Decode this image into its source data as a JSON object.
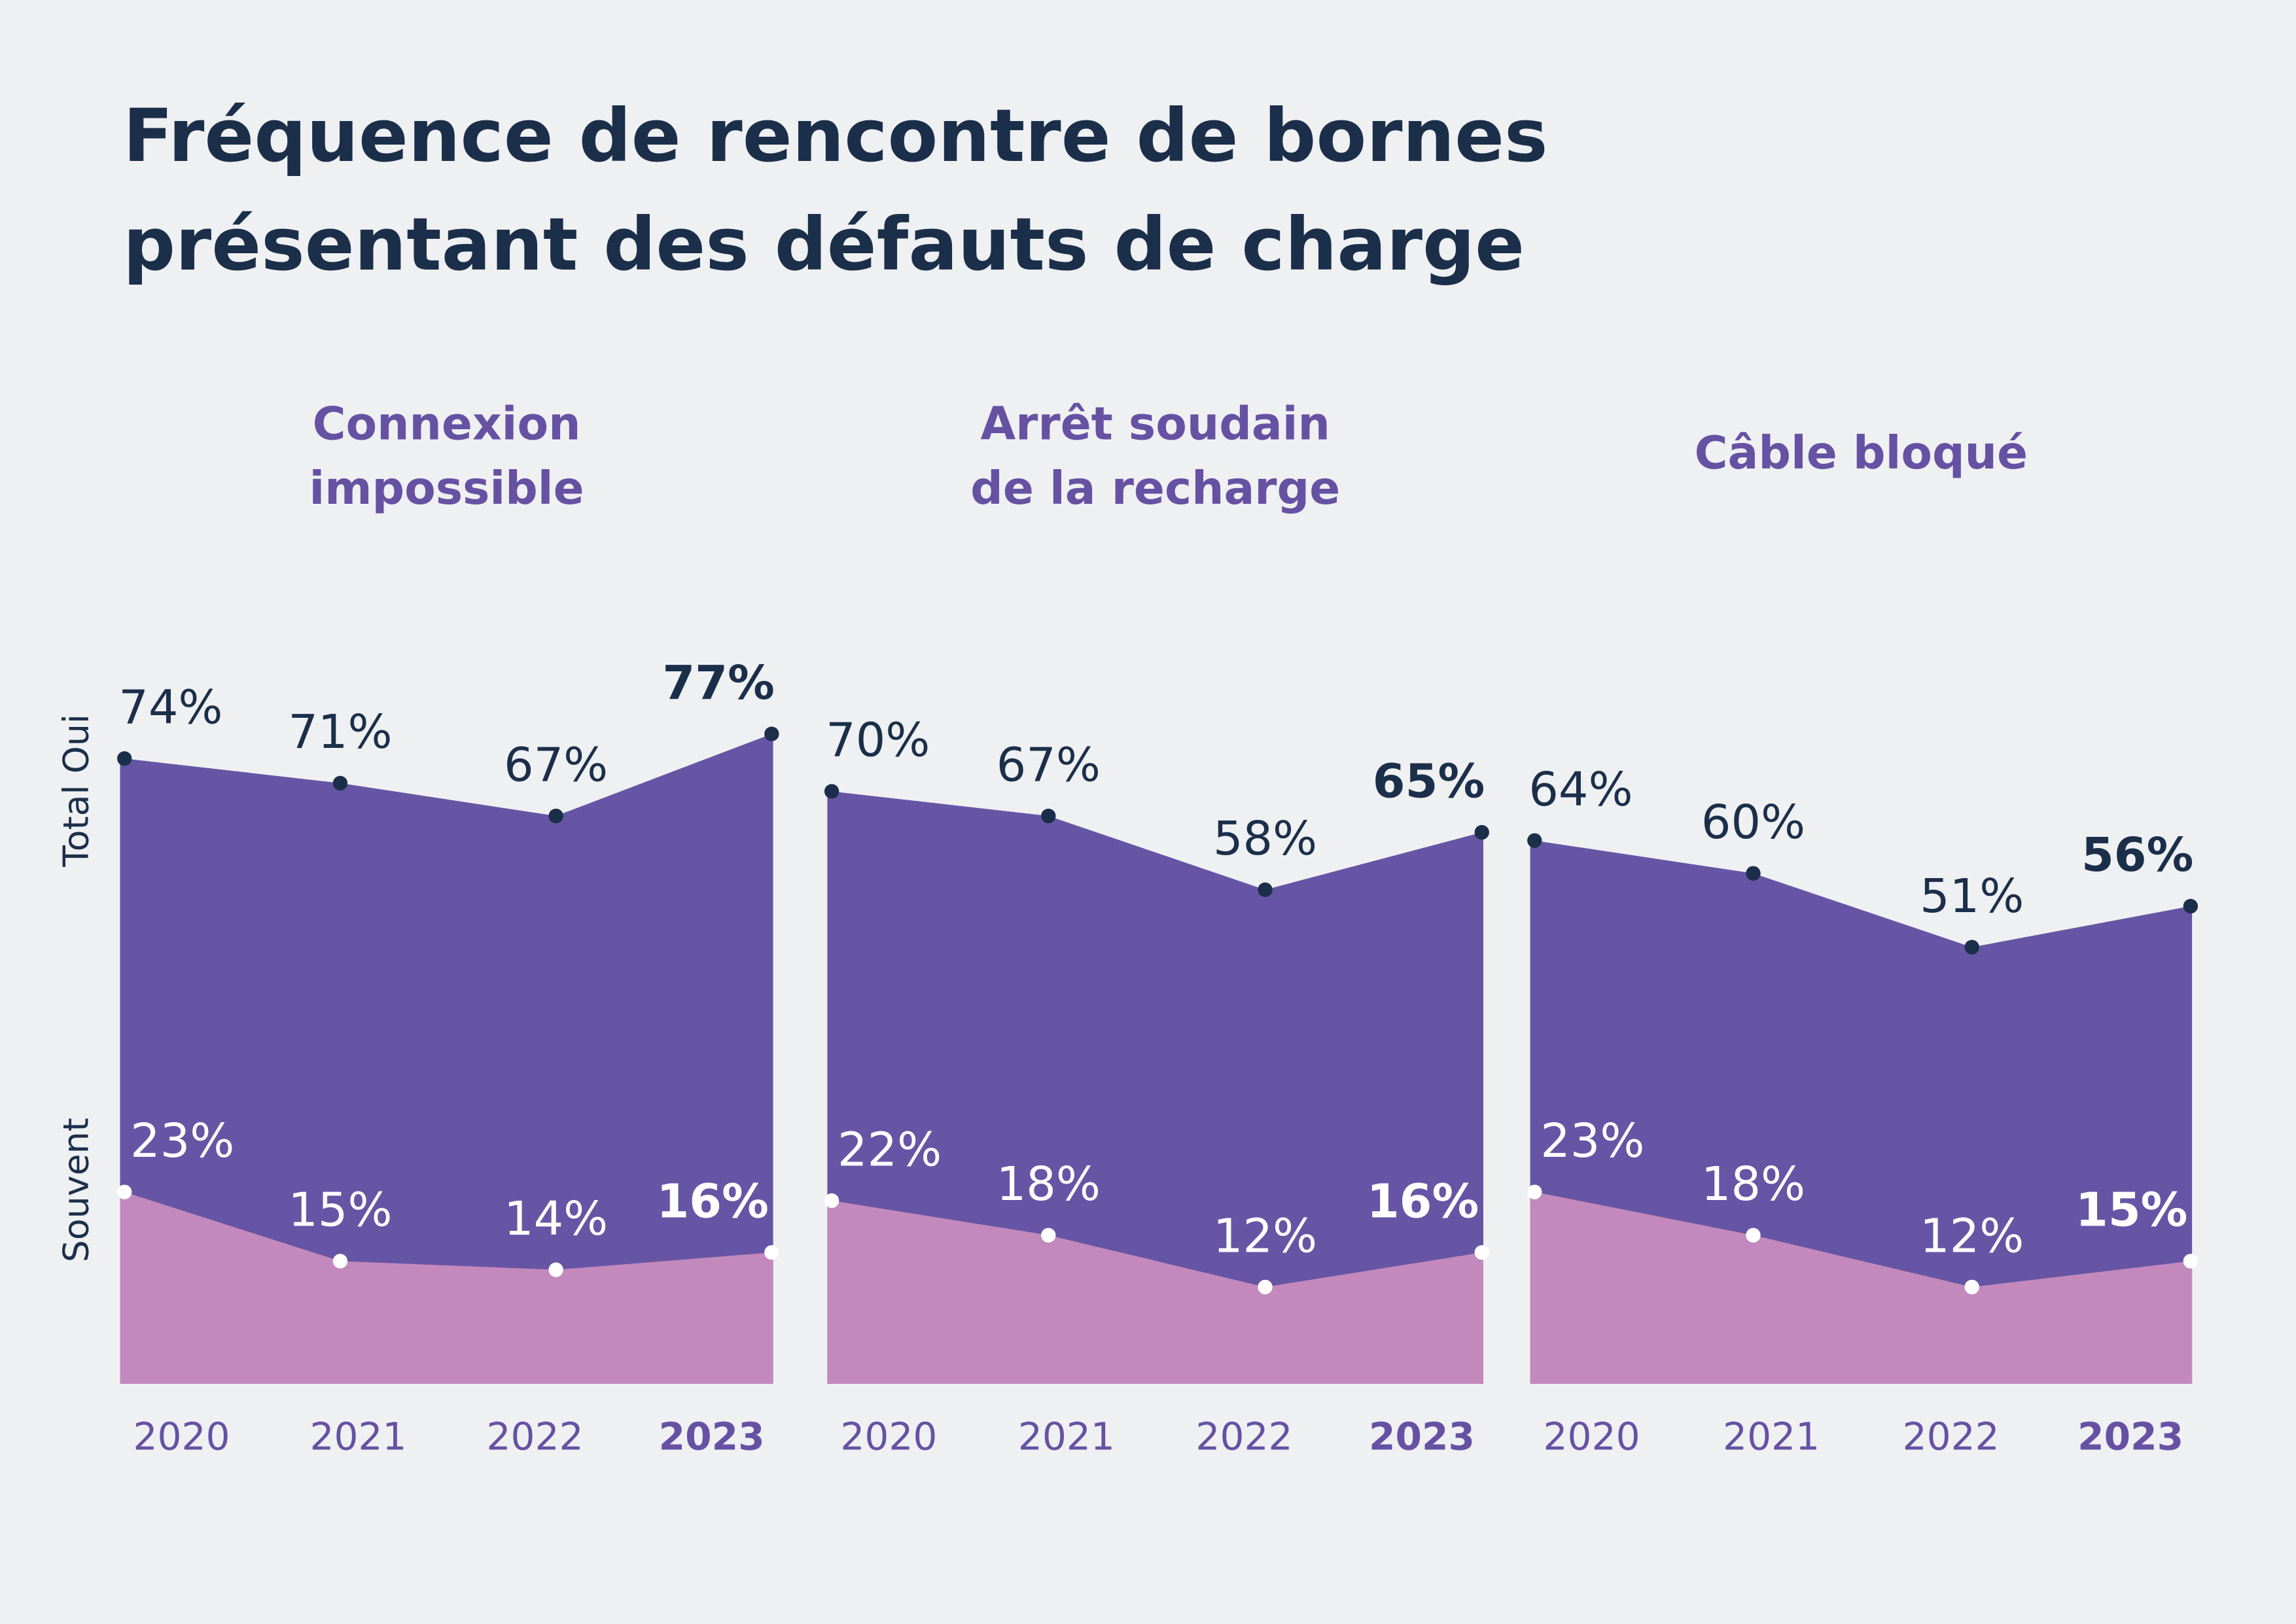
{
  "colors": {
    "background": "#eff0f2",
    "total": "#6655a4",
    "souvent": "#c389bc",
    "navy": "#1b2f4a",
    "accent": "#6651a3",
    "white": "#ffffff"
  },
  "chart_data": {
    "type": "area",
    "title_lines": [
      "Fréquence de rencontre de bornes",
      "présentant des défauts de charge"
    ],
    "ylabel_top": "Total Oui",
    "ylabel_bottom": "Souvent",
    "categories": [
      "2020",
      "2021",
      "2022",
      "2023"
    ],
    "panels": [
      {
        "title_lines": [
          "Connexion",
          "impossible"
        ],
        "series": [
          {
            "name": "Total Oui",
            "values": [
              74,
              71,
              67,
              77
            ]
          },
          {
            "name": "Souvent",
            "values": [
              23,
              15,
              14,
              16
            ]
          }
        ]
      },
      {
        "title_lines": [
          "Arrêt soudain",
          "de la recharge"
        ],
        "series": [
          {
            "name": "Total Oui",
            "values": [
              70,
              67,
              58,
              65
            ]
          },
          {
            "name": "Souvent",
            "values": [
              22,
              18,
              12,
              16
            ]
          }
        ]
      },
      {
        "title_lines": [
          "Câble bloqué"
        ],
        "series": [
          {
            "name": "Total Oui",
            "values": [
              64,
              60,
              51,
              56
            ]
          },
          {
            "name": "Souvent",
            "values": [
              23,
              18,
              12,
              15
            ]
          }
        ]
      }
    ],
    "highlight_category": "2023"
  }
}
